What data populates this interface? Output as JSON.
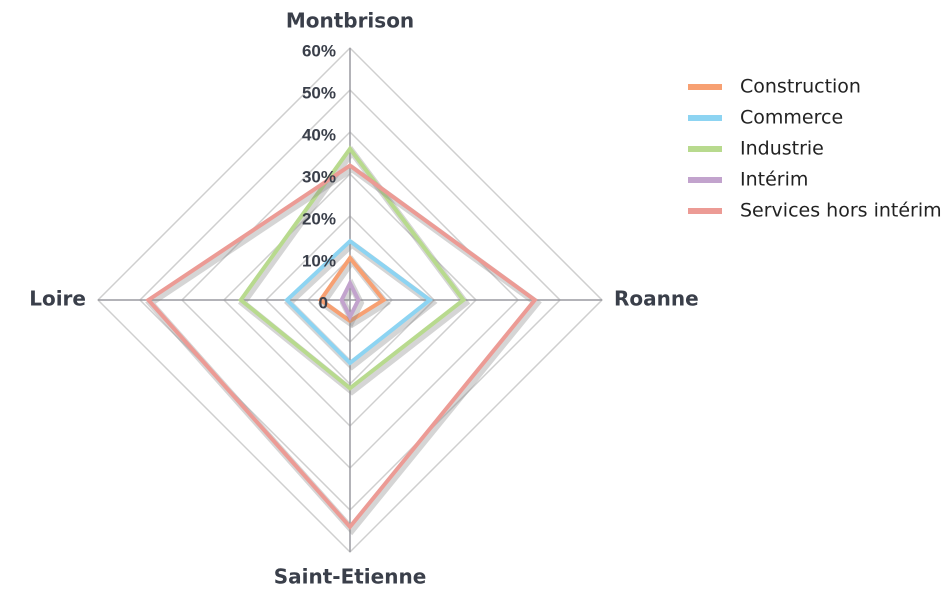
{
  "chart_data": {
    "type": "radar",
    "categories": [
      "Montbrison",
      "Roanne",
      "Saint-Etienne",
      "Loire"
    ],
    "series": [
      {
        "name": "Construction",
        "color": "#f7a072",
        "values": [
          10,
          8,
          5,
          7
        ]
      },
      {
        "name": "Commerce",
        "color": "#8dd4f2",
        "values": [
          14,
          19,
          15,
          15
        ]
      },
      {
        "name": "Industrie",
        "color": "#b8da8e",
        "values": [
          36,
          27,
          21,
          26
        ]
      },
      {
        "name": "Intérim",
        "color": "#c2a3cd",
        "values": [
          4,
          2,
          4,
          2
        ]
      },
      {
        "name": "Services hors intérim",
        "color": "#ec9b95",
        "values": [
          32,
          44,
          54,
          48
        ]
      }
    ],
    "rlim": [
      0,
      60
    ],
    "rticks": [
      0,
      {
        "value": 10,
        "label": "10%"
      },
      {
        "value": 20,
        "label": "20%"
      },
      {
        "value": 30,
        "label": "30%"
      },
      {
        "value": 40,
        "label": "40%"
      },
      {
        "value": 50,
        "label": "50%"
      },
      {
        "value": 60,
        "label": "60%"
      }
    ],
    "grid": true,
    "legend": "right"
  }
}
